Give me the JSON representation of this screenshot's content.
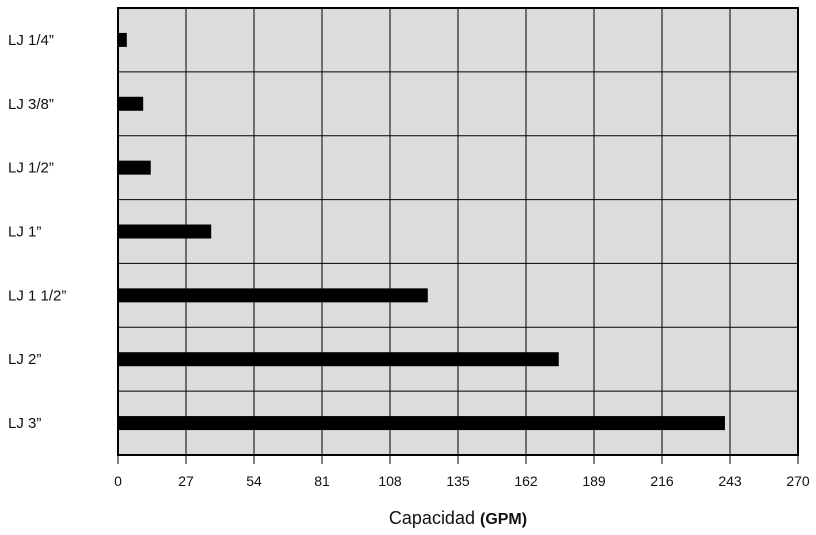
{
  "chart_data": {
    "type": "bar",
    "orientation": "horizontal",
    "categories": [
      "LJ 1/4”",
      "LJ 3/8”",
      "LJ 1/2”",
      "LJ 1”",
      "LJ 1 1/2”",
      "LJ 2”",
      "LJ 3”"
    ],
    "values": [
      3.5,
      10,
      13,
      37,
      123,
      175,
      241
    ],
    "xlim": [
      0,
      270
    ],
    "xticks": [
      "0",
      "27",
      "54",
      "81",
      "108",
      "135",
      "162",
      "189",
      "216",
      "243",
      "270"
    ],
    "xlabel": "Capacidad",
    "xlabel_unit": "(GPM)",
    "ylabel": "",
    "title": "",
    "grid": true,
    "colors": {
      "bar": "#000000",
      "plot_bg": "#dcdcdc",
      "grid": "#000000"
    }
  }
}
